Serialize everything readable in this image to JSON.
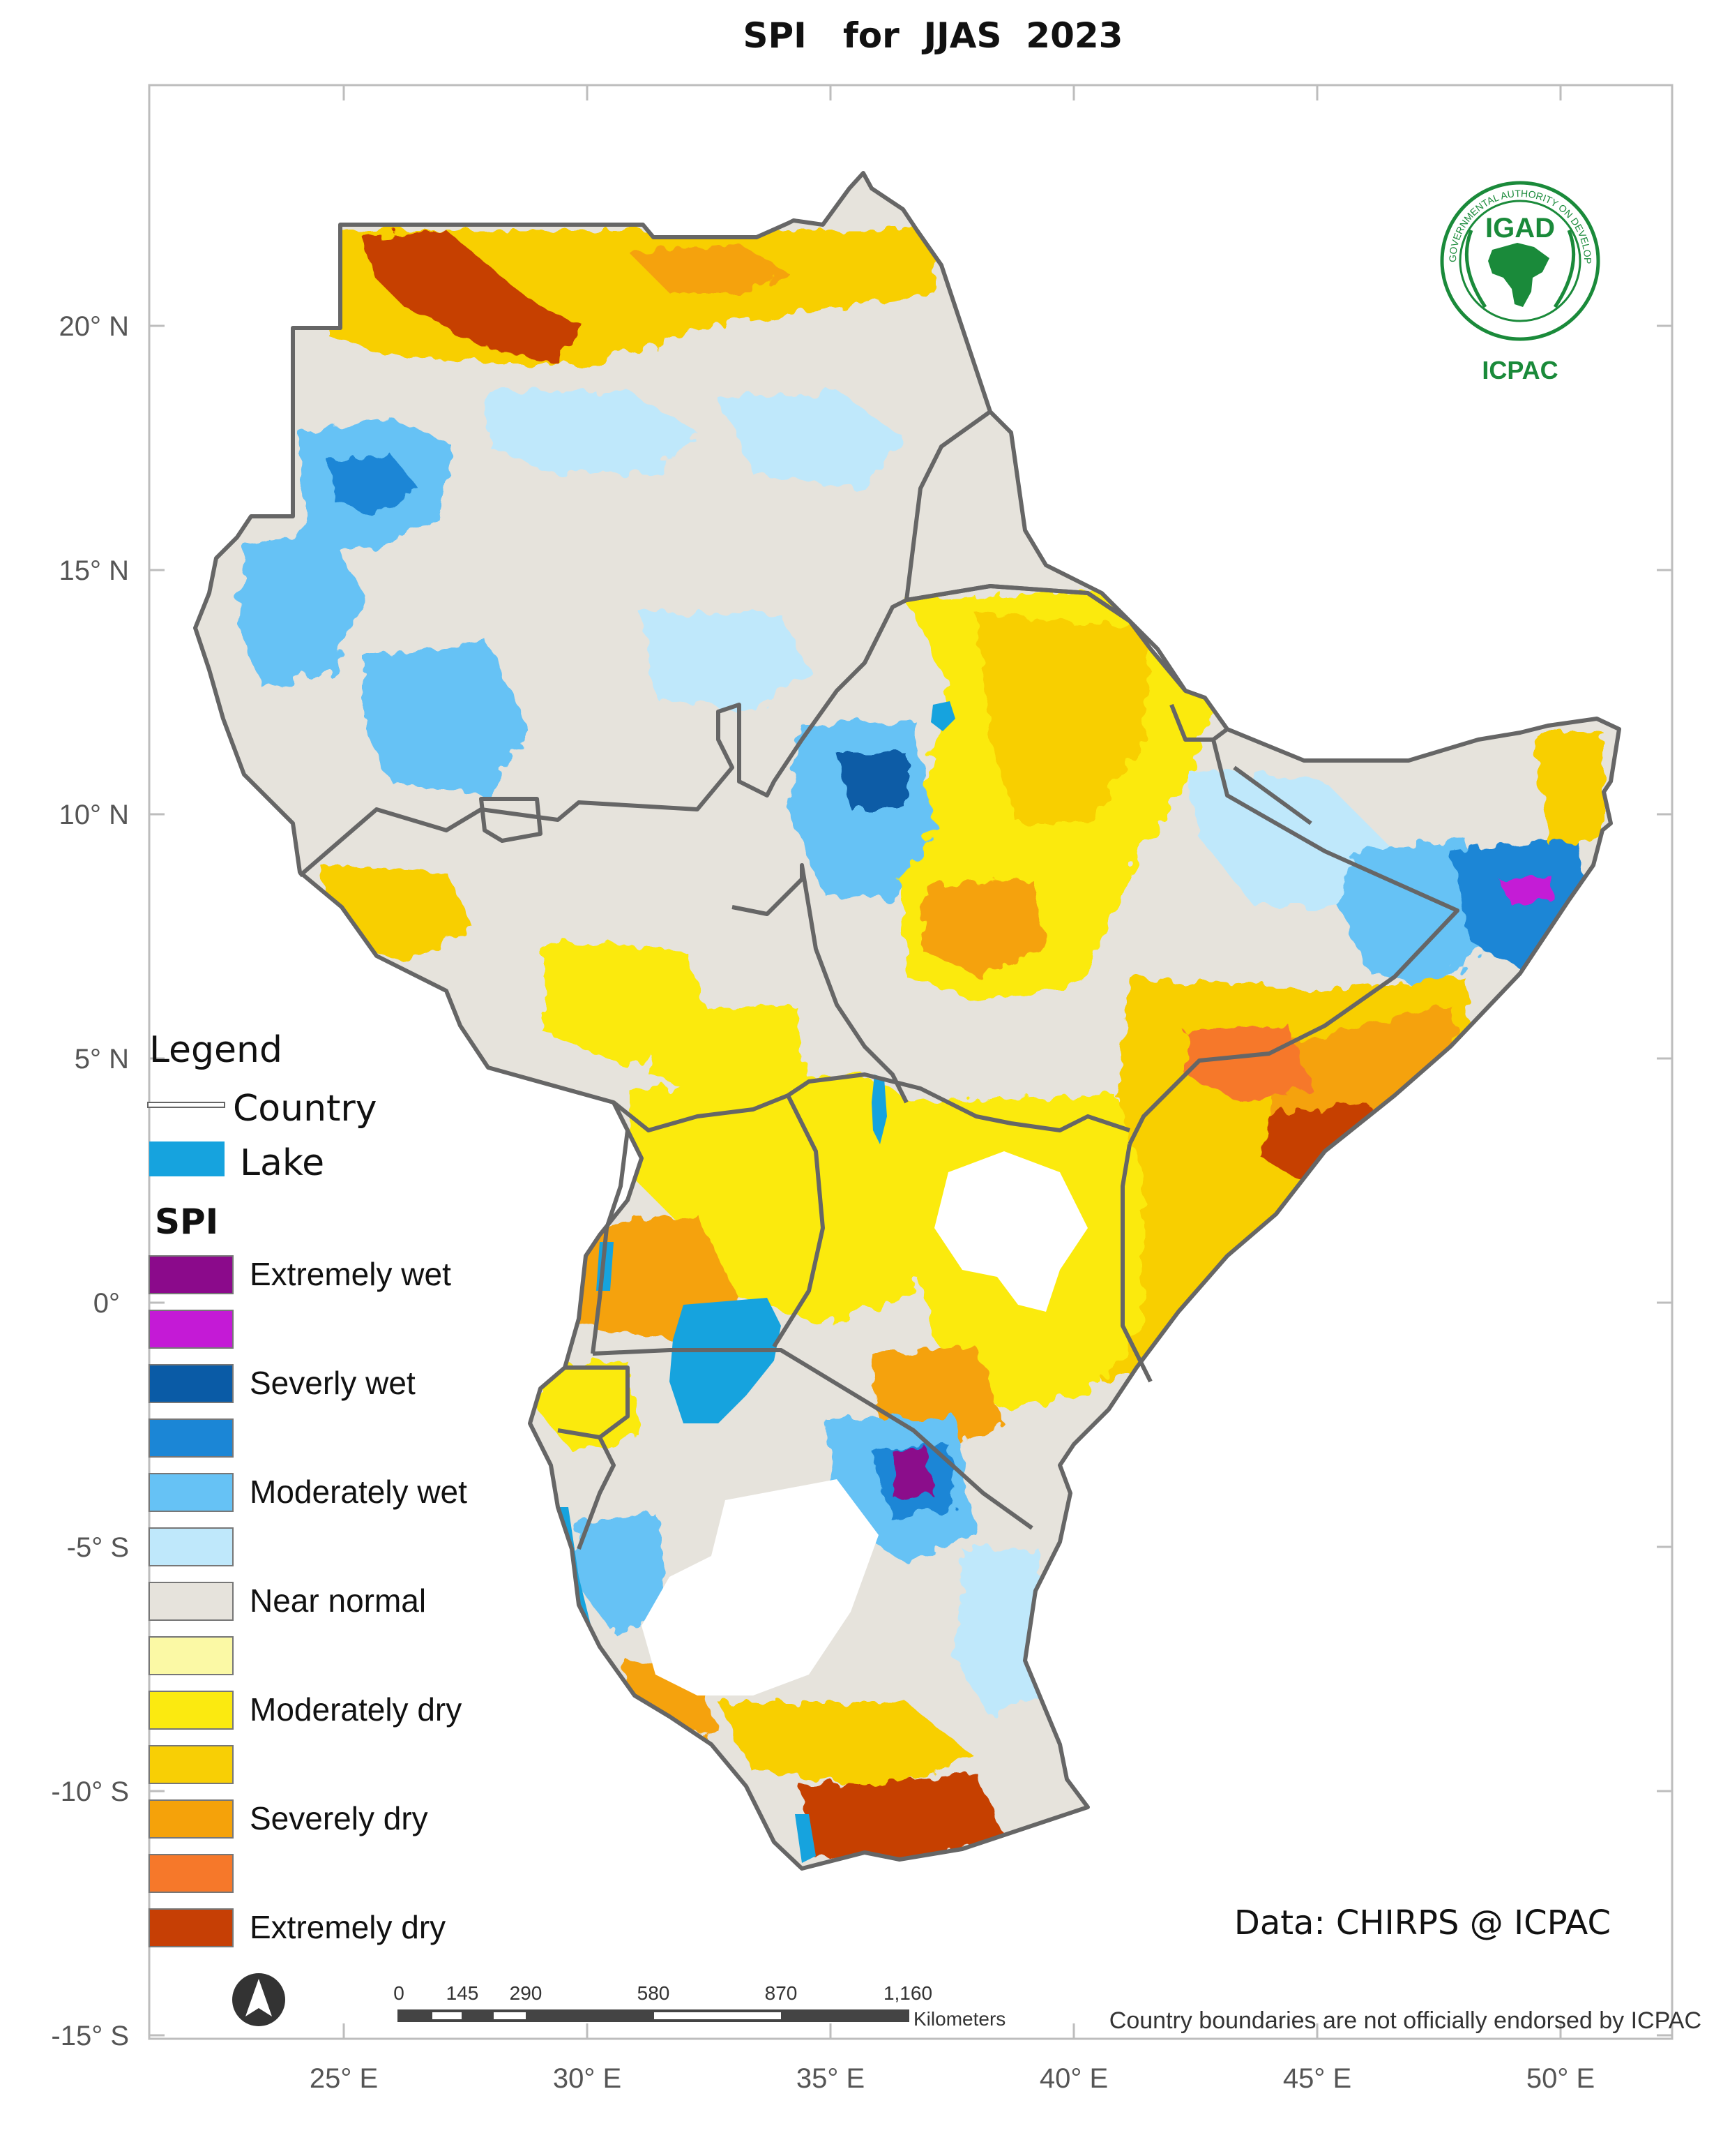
{
  "title": "SPI   for  JJAS  2023",
  "axes": {
    "lat_labels": [
      "20° N",
      "15° N",
      "10° N",
      "5° N",
      "0°",
      "-5° S",
      "-10° S",
      "-15° S"
    ],
    "lon_labels": [
      "25° E",
      "30° E",
      "35° E",
      "40° E",
      "45° E",
      "50° E"
    ]
  },
  "logo": {
    "top_text": "IGAD",
    "bottom_text": "ICPAC",
    "ring_text": "INTERGOVERNMENTAL AUTHORITY ON DEVELOPMENT",
    "color": "#1a8a3a"
  },
  "legend": {
    "heading": "Legend",
    "country_label": "Country",
    "lake_label": "Lake",
    "lake_color": "#16a3de",
    "spi_heading": "SPI",
    "classes": [
      {
        "label": "Extremely wet",
        "color": "#8b0a8b"
      },
      {
        "label": "",
        "color": "#c41ad6"
      },
      {
        "label": "Severly wet",
        "color": "#0a5ba6"
      },
      {
        "label": "",
        "color": "#1b86d6"
      },
      {
        "label": "Moderately wet",
        "color": "#66c2f5"
      },
      {
        "label": "",
        "color": "#bfe8fb"
      },
      {
        "label": "Near normal",
        "color": "#e6e3dc"
      },
      {
        "label": "",
        "color": "#fbf9a5"
      },
      {
        "label": "Moderately dry",
        "color": "#fbea10"
      },
      {
        "label": "",
        "color": "#f8cf05"
      },
      {
        "label": "Severely dry",
        "color": "#f5a20a"
      },
      {
        "label": "",
        "color": "#f6782a"
      },
      {
        "label": "Extremely dry",
        "color": "#c63f05"
      }
    ]
  },
  "scale_bar": {
    "ticks": [
      "0",
      "145",
      "290",
      "580",
      "870",
      "1,160"
    ],
    "unit": "Kilometers"
  },
  "credit": "Data: CHIRPS @ ICPAC",
  "disclaimer": "Country boundaries are not officially endorsed by ICPAC",
  "north_arrow_icon": "north-arrow-icon"
}
